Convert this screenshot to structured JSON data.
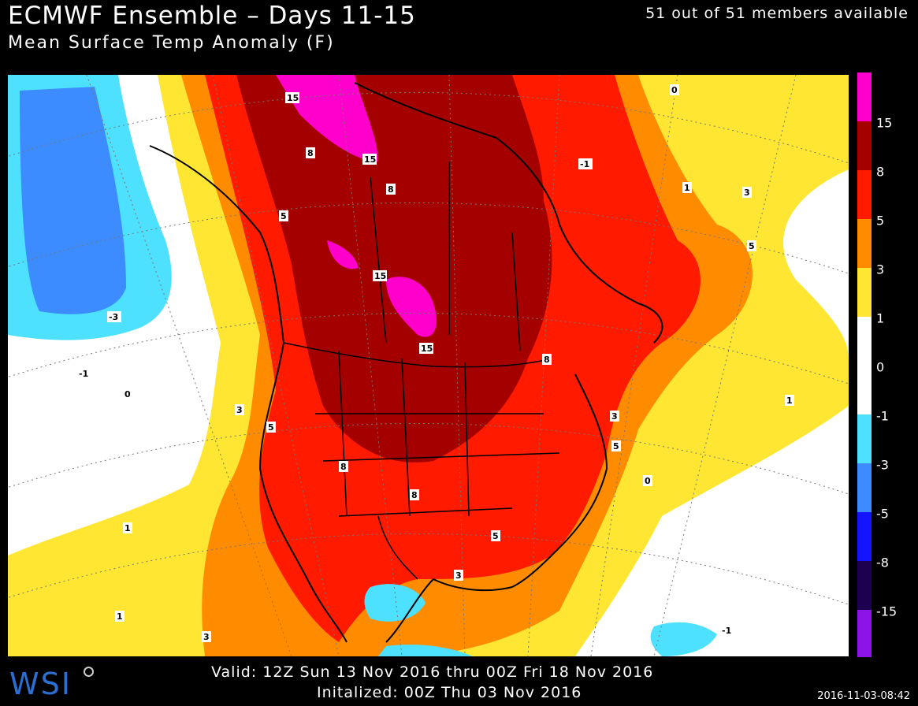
{
  "header": {
    "title": "ECMWF Ensemble – Days 11-15",
    "subtitle": "Mean Surface Temp Anomaly (F)",
    "members": "51 out of 51 members available"
  },
  "footer": {
    "valid": "Valid: 12Z Sun 13 Nov 2016 thru 00Z Fri 18 Nov 2016",
    "initialized": "Initalized: 00Z Thu 03 Nov 2016",
    "timestamp": "2016-11-03-08:42",
    "logo": "WSI"
  },
  "legend": {
    "bins": [
      {
        "label": "15",
        "color": "#ff00cc"
      },
      {
        "label": "8",
        "color": "#a50000"
      },
      {
        "label": "5",
        "color": "#ff1a00"
      },
      {
        "label": "3",
        "color": "#ff8c00"
      },
      {
        "label": "1",
        "color": "#ffe633"
      },
      {
        "label": "0",
        "color": "#ffffff"
      },
      {
        "label": "-1",
        "color": "#ffffff"
      },
      {
        "label": "-3",
        "color": "#4de1ff"
      },
      {
        "label": "-5",
        "color": "#3c8cff"
      },
      {
        "label": "-8",
        "color": "#1414ff"
      },
      {
        "label": "-15",
        "color": "#1e0050"
      },
      {
        "label": "",
        "color": "#8c14e6"
      }
    ]
  },
  "map": {
    "contour_labels": [
      {
        "text": "15"
      },
      {
        "text": "15"
      },
      {
        "text": "15"
      },
      {
        "text": "15"
      },
      {
        "text": "8"
      },
      {
        "text": "8"
      },
      {
        "text": "8"
      },
      {
        "text": "8"
      },
      {
        "text": "8"
      },
      {
        "text": "5"
      },
      {
        "text": "5"
      },
      {
        "text": "5"
      },
      {
        "text": "5"
      },
      {
        "text": "5"
      },
      {
        "text": "3"
      },
      {
        "text": "3"
      },
      {
        "text": "3"
      },
      {
        "text": "3"
      },
      {
        "text": "3"
      },
      {
        "text": "1"
      },
      {
        "text": "1"
      },
      {
        "text": "1"
      },
      {
        "text": "1"
      },
      {
        "text": "0"
      },
      {
        "text": "0"
      },
      {
        "text": "0"
      },
      {
        "text": "-1"
      },
      {
        "text": "-1"
      },
      {
        "text": "-1"
      },
      {
        "text": "-3"
      }
    ]
  }
}
